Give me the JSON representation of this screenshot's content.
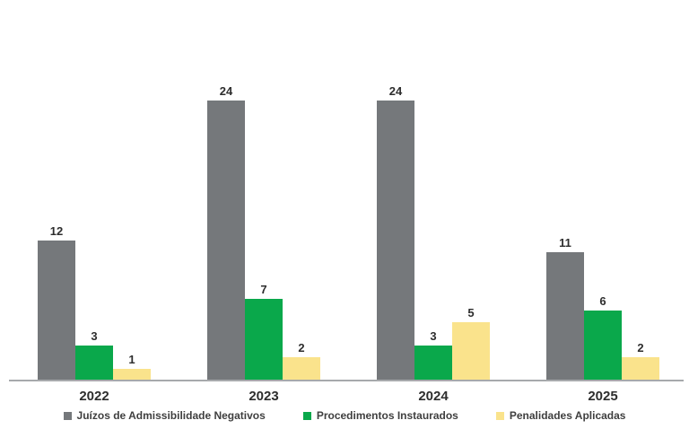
{
  "chart_data": {
    "type": "bar",
    "title": "",
    "xlabel": "",
    "ylabel": "",
    "categories": [
      "2022",
      "2023",
      "2024",
      "2025"
    ],
    "series": [
      {
        "name": "Juízos de Admissibilidade Negativos",
        "color": "#75787b",
        "values": [
          12,
          24,
          24,
          11
        ]
      },
      {
        "name": "Procedimentos Instaurados",
        "color": "#0aa84b",
        "values": [
          3,
          7,
          3,
          6
        ]
      },
      {
        "name": "Penalidades Aplicadas",
        "color": "#fae38c",
        "values": [
          1,
          2,
          5,
          2
        ]
      }
    ],
    "ylim": [
      0,
      24
    ],
    "grid": false,
    "legend_position": "bottom",
    "value_labels": true
  },
  "layout_colors": {
    "axis_line": "#a7a9ac",
    "value_text": "#2d2d2d",
    "legend_text": "#3f3f3f",
    "background": "#ffffff"
  }
}
